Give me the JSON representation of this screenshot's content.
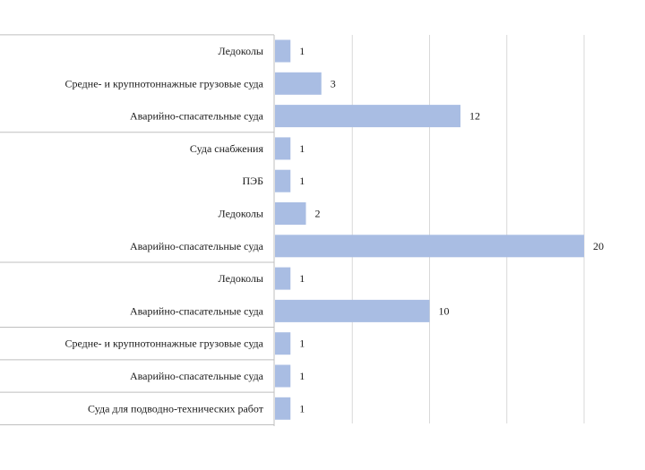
{
  "chart_data": {
    "type": "bar",
    "orientation": "horizontal",
    "categories": [
      "Ледоколы",
      "Средне- и крупнотоннажные грузовые суда",
      "Аварийно-спасательные суда",
      "Суда снабжения",
      "ПЭБ",
      "Ледоколы",
      "Аварийно-спасательные суда",
      "Ледоколы",
      "Аварийно-спасательные суда",
      "Средне- и крупнотоннажные грузовые суда",
      "Аварийно-спасательные суда",
      "Суда для подводно-технических работ"
    ],
    "values": [
      1,
      3,
      12,
      1,
      1,
      2,
      20,
      1,
      10,
      1,
      1,
      1
    ],
    "group_sizes": [
      3,
      4,
      2,
      1,
      1,
      1
    ],
    "xlim": [
      0,
      20
    ],
    "grid": true,
    "data_labels": true,
    "bar_color": "#a9bde3",
    "grid_color": "#d9d9d9",
    "border_color": "#bfbfbf",
    "text_color": "#1a1a1a"
  }
}
